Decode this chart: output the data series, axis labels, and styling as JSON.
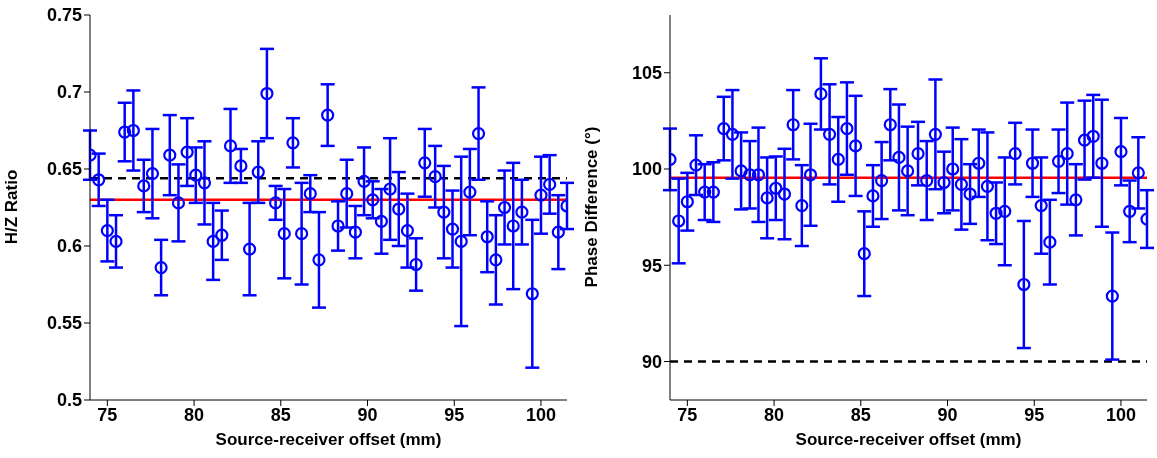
{
  "chart_data": [
    {
      "type": "scatter",
      "xlabel": "Source-receiver offset (mm)",
      "ylabel": "H/Z Ratio",
      "marker": "circle",
      "xlim": [
        74,
        101.5
      ],
      "xticks": [
        75,
        80,
        85,
        90,
        95,
        100
      ],
      "ylim": [
        0.5,
        0.75
      ],
      "yticks": [
        0.5,
        0.55,
        0.6,
        0.65,
        0.7,
        0.75
      ],
      "x": [
        74.0,
        74.5,
        75.0,
        75.5,
        76.0,
        76.5,
        77.1,
        77.6,
        78.1,
        78.6,
        79.1,
        79.6,
        80.1,
        80.6,
        81.1,
        81.6,
        82.1,
        82.7,
        83.2,
        83.7,
        84.2,
        84.7,
        85.2,
        85.7,
        86.2,
        86.7,
        87.2,
        87.7,
        88.3,
        88.8,
        89.3,
        89.8,
        90.3,
        90.8,
        91.3,
        91.8,
        92.3,
        92.8,
        93.3,
        93.9,
        94.4,
        94.9,
        95.4,
        95.9,
        96.4,
        96.9,
        97.4,
        97.9,
        98.4,
        98.9,
        99.5,
        100.0,
        100.5,
        101.0,
        101.5
      ],
      "series": [
        {
          "color": "#0000ff",
          "values": [
            0.659,
            0.643,
            0.61,
            0.603,
            0.674,
            0.675,
            0.639,
            0.647,
            0.586,
            0.659,
            0.628,
            0.661,
            0.646,
            0.641,
            0.603,
            0.607,
            0.665,
            0.652,
            0.598,
            0.648,
            0.699,
            0.628,
            0.608,
            0.667,
            0.608,
            0.634,
            0.591,
            0.685,
            0.613,
            0.634,
            0.609,
            0.642,
            0.63,
            0.616,
            0.637,
            0.624,
            0.61,
            0.588,
            0.654,
            0.645,
            0.622,
            0.611,
            0.603,
            0.635,
            0.673,
            0.606,
            0.591,
            0.625,
            0.613,
            0.622,
            0.569,
            0.633,
            0.64,
            0.609,
            0.626
          ],
          "errors": [
            0.016,
            0.017,
            0.02,
            0.017,
            0.019,
            0.026,
            0.017,
            0.029,
            0.018,
            0.026,
            0.025,
            0.022,
            0.018,
            0.027,
            0.025,
            0.016,
            0.024,
            0.011,
            0.03,
            0.02,
            0.029,
            0.011,
            0.029,
            0.016,
            0.033,
            0.012,
            0.031,
            0.02,
            0.016,
            0.022,
            0.017,
            0.022,
            0.012,
            0.021,
            0.033,
            0.024,
            0.024,
            0.017,
            0.022,
            0.02,
            0.03,
            0.025,
            0.055,
            0.028,
            0.03,
            0.023,
            0.029,
            0.024,
            0.041,
            0.021,
            0.048,
            0.025,
            0.019,
            0.024,
            0.015
          ]
        }
      ],
      "ref_lines": [
        {
          "axis": "y",
          "value": 0.644,
          "color": "#000000",
          "line_style": "dashed"
        },
        {
          "axis": "y",
          "value": 0.63,
          "color": "#ff0000",
          "line_style": "solid"
        }
      ]
    },
    {
      "type": "scatter",
      "xlabel": "Source-receiver offset (mm)",
      "ylabel": "Phase Difference (°)",
      "marker": "circle",
      "xlim": [
        74,
        101.5
      ],
      "xticks": [
        75,
        80,
        85,
        90,
        95,
        100
      ],
      "ylim": [
        88,
        108
      ],
      "yticks": [
        90,
        95,
        100,
        105
      ],
      "x": [
        74.0,
        74.5,
        75.0,
        75.5,
        76.0,
        76.5,
        77.1,
        77.6,
        78.1,
        78.6,
        79.1,
        79.6,
        80.1,
        80.6,
        81.1,
        81.6,
        82.1,
        82.7,
        83.2,
        83.7,
        84.2,
        84.7,
        85.2,
        85.7,
        86.2,
        86.7,
        87.2,
        87.7,
        88.3,
        88.8,
        89.3,
        89.8,
        90.3,
        90.8,
        91.3,
        91.8,
        92.3,
        92.8,
        93.3,
        93.9,
        94.4,
        94.9,
        95.4,
        95.9,
        96.4,
        96.9,
        97.4,
        97.9,
        98.4,
        98.9,
        99.5,
        100.0,
        100.5,
        101.0,
        101.5
      ],
      "series": [
        {
          "color": "#0000ff",
          "values": [
            100.5,
            97.3,
            98.3,
            100.2,
            98.8,
            98.8,
            102.1,
            101.8,
            99.9,
            99.7,
            99.7,
            98.5,
            99.0,
            98.7,
            102.3,
            98.1,
            99.7,
            103.9,
            101.8,
            100.5,
            102.1,
            101.2,
            95.6,
            98.6,
            99.4,
            102.3,
            100.6,
            99.9,
            100.8,
            99.4,
            101.8,
            99.3,
            100.0,
            99.2,
            98.7,
            100.3,
            99.1,
            97.7,
            97.8,
            100.8,
            94.0,
            100.3,
            98.1,
            96.2,
            100.4,
            100.8,
            98.4,
            101.5,
            101.7,
            100.3,
            93.4,
            100.9,
            97.8,
            99.8,
            97.4
          ],
          "errors": [
            1.6,
            2.2,
            1.5,
            1.55,
            1.45,
            1.55,
            1.65,
            2.3,
            2.0,
            1.75,
            2.45,
            2.1,
            1.65,
            2.35,
            1.8,
            2.1,
            2.65,
            1.85,
            2.6,
            2.2,
            2.4,
            2.6,
            2.2,
            1.6,
            2.0,
            1.85,
            2.75,
            2.3,
            1.65,
            2.05,
            2.85,
            1.6,
            2.15,
            2.35,
            1.55,
            1.75,
            2.8,
            1.6,
            2.8,
            1.6,
            3.3,
            1.75,
            2.5,
            2.2,
            1.65,
            2.65,
            1.85,
            2.05,
            2.15,
            3.3,
            3.3,
            1.75,
            1.6,
            1.85,
            1.5
          ]
        }
      ],
      "ref_lines": [
        {
          "axis": "y",
          "value": 90,
          "color": "#000000",
          "line_style": "dashed"
        },
        {
          "axis": "y",
          "value": 99.55,
          "color": "#ff0000",
          "line_style": "solid"
        }
      ]
    }
  ]
}
